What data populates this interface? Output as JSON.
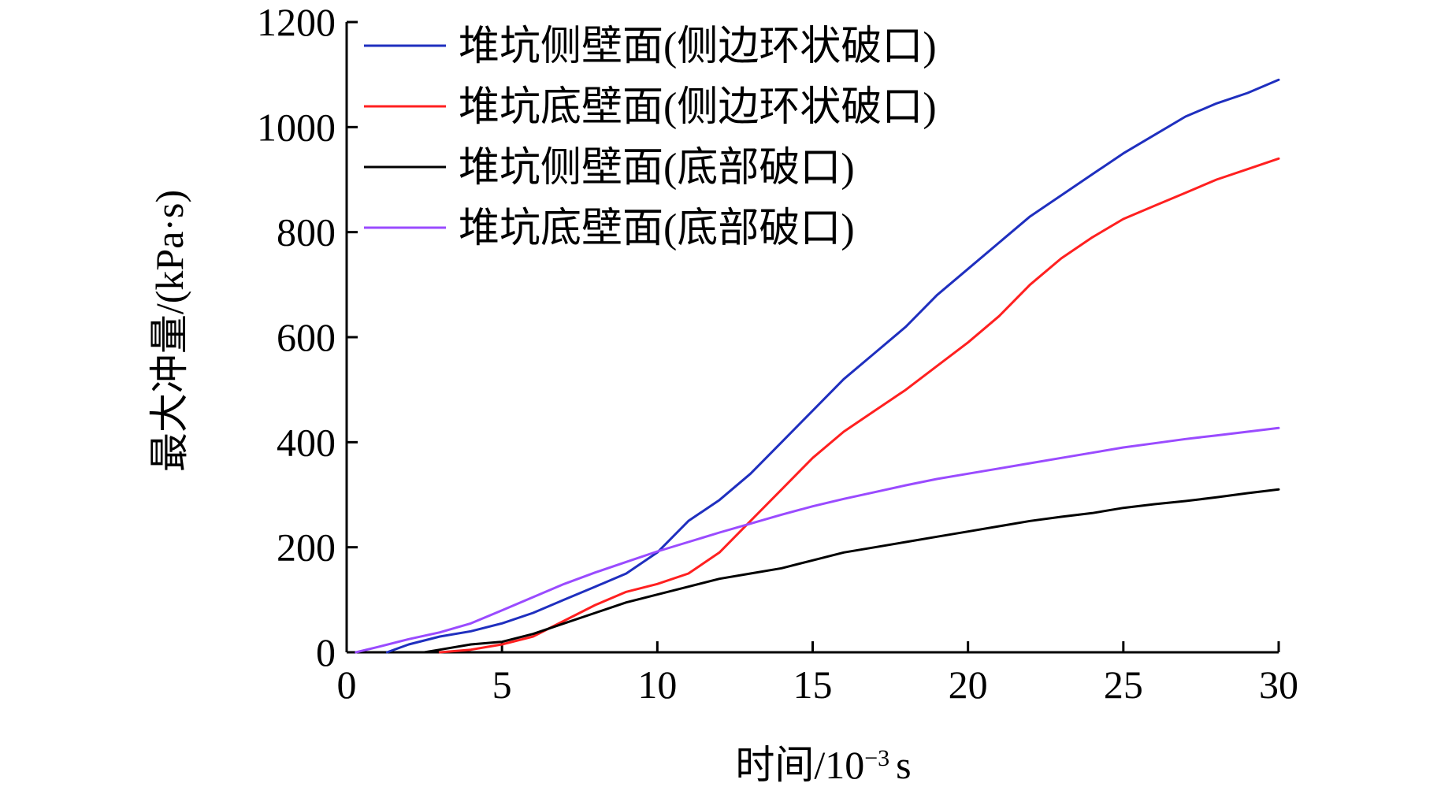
{
  "chart_data": {
    "type": "line",
    "title": "",
    "xlabel": "时间/10",
    "xlabel_sup": "−3",
    "xlabel_unit": "s",
    "ylabel": "最大冲量/(kPa·s)",
    "xlim": [
      0,
      30
    ],
    "ylim": [
      0,
      1200
    ],
    "xticks": [
      0,
      5,
      10,
      15,
      20,
      25,
      30
    ],
    "yticks": [
      0,
      200,
      400,
      600,
      800,
      1000,
      1200
    ],
    "grid": false,
    "legend_position": "top-left",
    "series": [
      {
        "name": "堆坑侧壁面(侧边环状破口)",
        "color": "#1f2fbf",
        "points": [
          [
            1.3,
            0
          ],
          [
            2,
            15
          ],
          [
            3,
            30
          ],
          [
            4,
            40
          ],
          [
            5,
            55
          ],
          [
            6,
            75
          ],
          [
            7,
            100
          ],
          [
            8,
            125
          ],
          [
            9,
            150
          ],
          [
            10,
            190
          ],
          [
            11,
            250
          ],
          [
            12,
            290
          ],
          [
            13,
            340
          ],
          [
            14,
            400
          ],
          [
            15,
            460
          ],
          [
            16,
            520
          ],
          [
            17,
            570
          ],
          [
            18,
            620
          ],
          [
            19,
            680
          ],
          [
            20,
            730
          ],
          [
            21,
            780
          ],
          [
            22,
            830
          ],
          [
            23,
            870
          ],
          [
            24,
            910
          ],
          [
            25,
            950
          ],
          [
            26,
            985
          ],
          [
            27,
            1020
          ],
          [
            28,
            1045
          ],
          [
            29,
            1065
          ],
          [
            30,
            1090
          ]
        ]
      },
      {
        "name": "堆坑底壁面(侧边环状破口)",
        "color": "#ff2020",
        "points": [
          [
            3,
            0
          ],
          [
            4,
            5
          ],
          [
            5,
            15
          ],
          [
            6,
            30
          ],
          [
            7,
            60
          ],
          [
            8,
            90
          ],
          [
            9,
            115
          ],
          [
            10,
            130
          ],
          [
            11,
            150
          ],
          [
            12,
            190
          ],
          [
            13,
            250
          ],
          [
            14,
            310
          ],
          [
            15,
            370
          ],
          [
            16,
            420
          ],
          [
            17,
            460
          ],
          [
            18,
            500
          ],
          [
            19,
            545
          ],
          [
            20,
            590
          ],
          [
            21,
            640
          ],
          [
            22,
            700
          ],
          [
            23,
            750
          ],
          [
            24,
            790
          ],
          [
            25,
            825
          ],
          [
            26,
            850
          ],
          [
            27,
            875
          ],
          [
            28,
            900
          ],
          [
            29,
            920
          ],
          [
            30,
            940
          ]
        ]
      },
      {
        "name": "堆坑侧壁面(底部破口)",
        "color": "#000000",
        "points": [
          [
            2.5,
            0
          ],
          [
            3,
            5
          ],
          [
            4,
            15
          ],
          [
            5,
            20
          ],
          [
            6,
            35
          ],
          [
            7,
            55
          ],
          [
            8,
            75
          ],
          [
            9,
            95
          ],
          [
            10,
            110
          ],
          [
            11,
            125
          ],
          [
            12,
            140
          ],
          [
            13,
            150
          ],
          [
            14,
            160
          ],
          [
            15,
            175
          ],
          [
            16,
            190
          ],
          [
            17,
            200
          ],
          [
            18,
            210
          ],
          [
            19,
            220
          ],
          [
            20,
            230
          ],
          [
            21,
            240
          ],
          [
            22,
            250
          ],
          [
            23,
            258
          ],
          [
            24,
            265
          ],
          [
            25,
            275
          ],
          [
            26,
            282
          ],
          [
            27,
            288
          ],
          [
            28,
            295
          ],
          [
            29,
            303
          ],
          [
            30,
            310
          ]
        ]
      },
      {
        "name": "堆坑底壁面(底部破口)",
        "color": "#9a4bff",
        "points": [
          [
            0.3,
            0
          ],
          [
            1,
            10
          ],
          [
            2,
            25
          ],
          [
            3,
            38
          ],
          [
            4,
            55
          ],
          [
            5,
            80
          ],
          [
            6,
            105
          ],
          [
            7,
            130
          ],
          [
            8,
            152
          ],
          [
            9,
            172
          ],
          [
            10,
            192
          ],
          [
            11,
            210
          ],
          [
            12,
            228
          ],
          [
            13,
            245
          ],
          [
            14,
            262
          ],
          [
            15,
            278
          ],
          [
            16,
            292
          ],
          [
            17,
            305
          ],
          [
            18,
            318
          ],
          [
            19,
            330
          ],
          [
            20,
            340
          ],
          [
            21,
            350
          ],
          [
            22,
            360
          ],
          [
            23,
            370
          ],
          [
            24,
            380
          ],
          [
            25,
            390
          ],
          [
            26,
            398
          ],
          [
            27,
            406
          ],
          [
            28,
            413
          ],
          [
            29,
            420
          ],
          [
            30,
            427
          ]
        ]
      }
    ]
  }
}
